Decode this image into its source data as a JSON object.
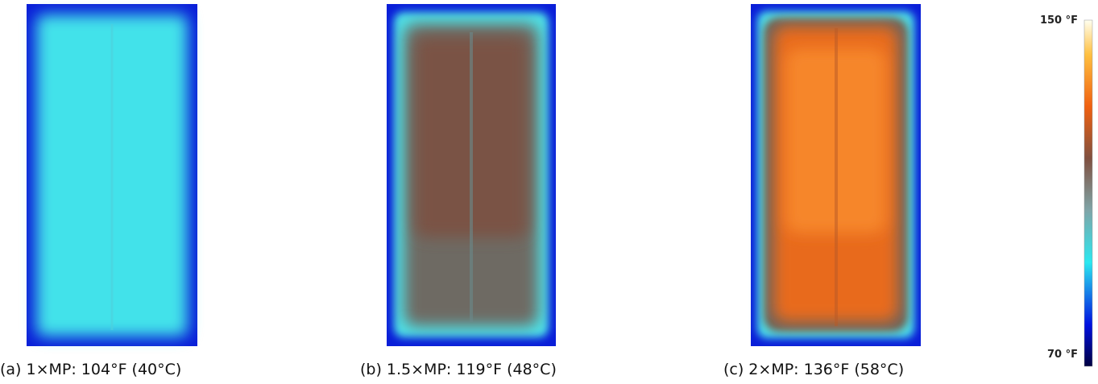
{
  "panels": [
    {
      "caption": "(a) 1×MP: 104°F (40°C)"
    },
    {
      "caption": "(b) 1.5×MP: 119°F (48°C)"
    },
    {
      "caption": "(c) 2×MP: 136°F (58°C)"
    }
  ],
  "colorbar": {
    "max_label": "150 °F",
    "min_label": "70 °F"
  }
}
